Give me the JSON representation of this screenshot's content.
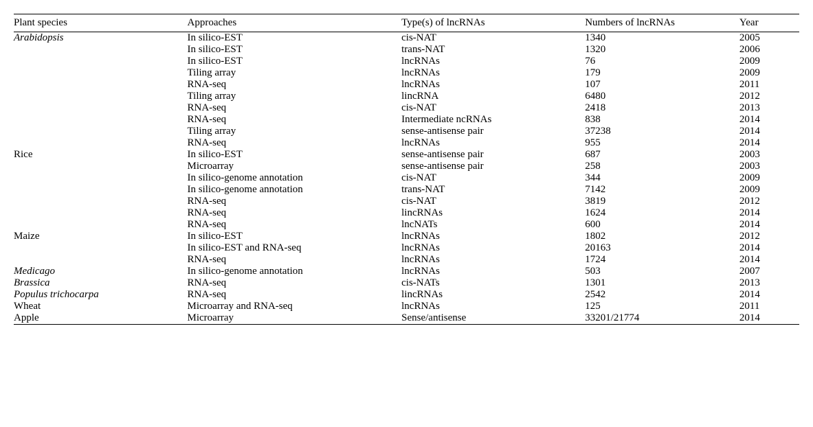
{
  "table": {
    "columns": [
      {
        "label": "Plant species"
      },
      {
        "label": "Approaches"
      },
      {
        "label": "Type(s) of lncRNAs"
      },
      {
        "label": "Numbers of lncRNAs"
      },
      {
        "label": "Year"
      }
    ],
    "rows": [
      {
        "species": "Arabidopsis",
        "italic": true,
        "approach": "In silico-EST",
        "type": "cis-NAT",
        "number": "1340",
        "year": "2005"
      },
      {
        "species": "",
        "italic": false,
        "approach": "In silico-EST",
        "type": "trans-NAT",
        "number": "1320",
        "year": "2006"
      },
      {
        "species": "",
        "italic": false,
        "approach": "In silico-EST",
        "type": "lncRNAs",
        "number": "76",
        "year": "2009"
      },
      {
        "species": "",
        "italic": false,
        "approach": "Tiling array",
        "type": "lncRNAs",
        "number": "179",
        "year": "2009"
      },
      {
        "species": "",
        "italic": false,
        "approach": "RNA-seq",
        "type": "lncRNAs",
        "number": "107",
        "year": "2011"
      },
      {
        "species": "",
        "italic": false,
        "approach": "Tiling array",
        "type": "lincRNA",
        "number": "6480",
        "year": "2012"
      },
      {
        "species": "",
        "italic": false,
        "approach": "RNA-seq",
        "type": "cis-NAT",
        "number": "2418",
        "year": "2013"
      },
      {
        "species": "",
        "italic": false,
        "approach": "RNA-seq",
        "type": "Intermediate ncRNAs",
        "number": "838",
        "year": "2014"
      },
      {
        "species": "",
        "italic": false,
        "approach": "Tiling array",
        "type": "sense-antisense pair",
        "number": "37238",
        "year": "2014"
      },
      {
        "species": "",
        "italic": false,
        "approach": "RNA-seq",
        "type": "lncRNAs",
        "number": "955",
        "year": "2014"
      },
      {
        "species": "Rice",
        "italic": false,
        "approach": "In silico-EST",
        "type": "sense-antisense pair",
        "number": "687",
        "year": "2003"
      },
      {
        "species": "",
        "italic": false,
        "approach": "Microarray",
        "type": "sense-antisense pair",
        "number": "258",
        "year": "2003"
      },
      {
        "species": "",
        "italic": false,
        "approach": "In silico-genome annotation",
        "type": "cis-NAT",
        "number": "344",
        "year": "2009"
      },
      {
        "species": "",
        "italic": false,
        "approach": "In silico-genome annotation",
        "type": "trans-NAT",
        "number": "7142",
        "year": "2009"
      },
      {
        "species": "",
        "italic": false,
        "approach": "RNA-seq",
        "type": "cis-NAT",
        "number": "3819",
        "year": "2012"
      },
      {
        "species": "",
        "italic": false,
        "approach": "RNA-seq",
        "type": "lincRNAs",
        "number": "1624",
        "year": "2014"
      },
      {
        "species": "",
        "italic": false,
        "approach": "RNA-seq",
        "type": "lncNATs",
        "number": "600",
        "year": "2014"
      },
      {
        "species": "Maize",
        "italic": false,
        "approach": "In silico-EST",
        "type": "lncRNAs",
        "number": "1802",
        "year": "2012"
      },
      {
        "species": "",
        "italic": false,
        "approach": "In silico-EST and RNA-seq",
        "type": "lncRNAs",
        "number": "20163",
        "year": "2014"
      },
      {
        "species": "",
        "italic": false,
        "approach": "RNA-seq",
        "type": "lncRNAs",
        "number": "1724",
        "year": "2014"
      },
      {
        "species": "Medicago",
        "italic": true,
        "approach": "In silico-genome annotation",
        "type": "lncRNAs",
        "number": "503",
        "year": "2007"
      },
      {
        "species": "Brassica",
        "italic": true,
        "approach": "RNA-seq",
        "type": "cis-NATs",
        "number": "1301",
        "year": "2013"
      },
      {
        "species": "Populus trichocarpa",
        "italic": true,
        "approach": "RNA-seq",
        "type": "lincRNAs",
        "number": "2542",
        "year": "2014"
      },
      {
        "species": "Wheat",
        "italic": false,
        "approach": "Microarray and RNA-seq",
        "type": "lncRNAs",
        "number": "125",
        "year": "2011"
      },
      {
        "species": "Apple",
        "italic": false,
        "approach": "Microarray",
        "type": "Sense/antisense",
        "number": "33201/21774",
        "year": "2014"
      }
    ]
  }
}
